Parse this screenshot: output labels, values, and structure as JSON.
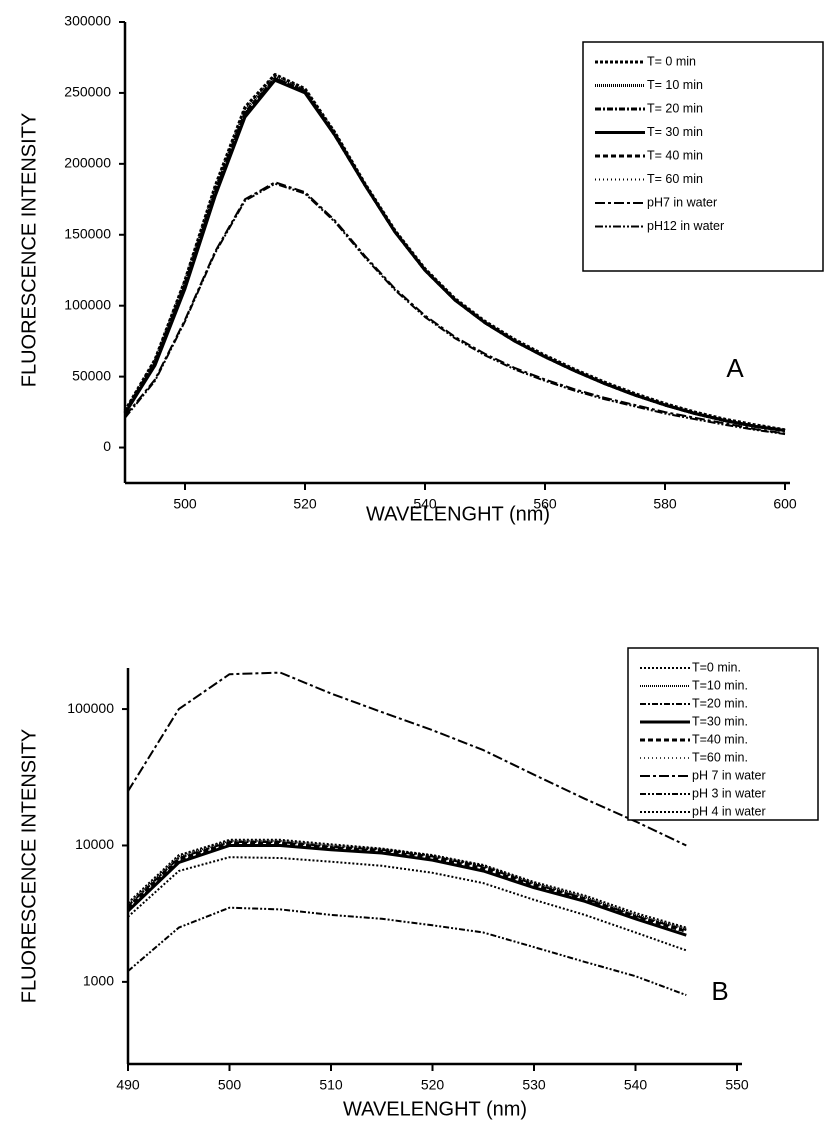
{
  "chart_data": [
    {
      "type": "line",
      "panel_label": "A",
      "x_label": "WAVELENGHT (nm)",
      "y_label": "FLUORESCENCE INTENSITY",
      "x": [
        490,
        495,
        500,
        505,
        510,
        515,
        520,
        525,
        530,
        535,
        540,
        545,
        550,
        555,
        560,
        565,
        570,
        575,
        580,
        585,
        590,
        595,
        600
      ],
      "xlim": [
        490,
        600
      ],
      "xticks": [
        500,
        520,
        540,
        560,
        580,
        600
      ],
      "ylim": [
        -25000,
        300000
      ],
      "yticks": [
        0,
        50000,
        100000,
        150000,
        200000,
        250000,
        300000
      ],
      "log_y": false,
      "series": [
        {
          "name": "T= 0 min",
          "color": "#000000",
          "values": [
            26000,
            62000,
            118000,
            184000,
            240000,
            263000,
            253000,
            222000,
            186000,
            153000,
            126000,
            105000,
            89000,
            76000,
            65000,
            55000,
            46000,
            38000,
            31000,
            25000,
            20000,
            16000,
            12500
          ]
        },
        {
          "name": "T= 10 min",
          "color": "#000000",
          "values": [
            25000,
            61000,
            117000,
            182000,
            238000,
            262000,
            252000,
            221000,
            185000,
            152000,
            125000,
            104000,
            88000,
            75000,
            64000,
            54000,
            45000,
            37000,
            30000,
            24000,
            19000,
            15000,
            12000
          ]
        },
        {
          "name": "T= 20 min",
          "color": "#000000",
          "values": [
            24000,
            59000,
            114000,
            179000,
            235000,
            260000,
            251000,
            220000,
            185000,
            152000,
            125000,
            104000,
            88000,
            75000,
            64000,
            54000,
            45000,
            37000,
            30000,
            24000,
            19000,
            15000,
            12000
          ]
        },
        {
          "name": "T= 30 min",
          "color": "#000000",
          "values": [
            24000,
            58000,
            112000,
            177000,
            233000,
            259000,
            250000,
            220000,
            185000,
            152000,
            125000,
            104000,
            88000,
            75000,
            64000,
            54000,
            45000,
            37000,
            30000,
            24000,
            19000,
            15000,
            12000
          ]
        },
        {
          "name": "T= 40 min",
          "color": "#000000",
          "values": [
            25000,
            60000,
            115000,
            180000,
            236000,
            260000,
            251000,
            221000,
            185000,
            152000,
            125000,
            104000,
            88000,
            75000,
            64000,
            54000,
            45000,
            37000,
            30000,
            24000,
            19000,
            15000,
            12000
          ]
        },
        {
          "name": "T= 60 min",
          "color": "#000000",
          "values": [
            25000,
            60000,
            116000,
            181000,
            237000,
            261000,
            251000,
            221000,
            185000,
            152000,
            125000,
            104000,
            88000,
            75000,
            64000,
            54000,
            45000,
            37000,
            30000,
            24000,
            19000,
            15000,
            12000
          ]
        },
        {
          "name": "pH7 in water",
          "color": "#000000",
          "values": [
            22000,
            48000,
            90000,
            138000,
            175000,
            187000,
            180000,
            160000,
            135000,
            112000,
            93000,
            78000,
            66000,
            56000,
            48000,
            41000,
            35000,
            30000,
            25000,
            21000,
            17000,
            13000,
            10000
          ]
        },
        {
          "name": "pH12 in water",
          "color": "#000000",
          "values": [
            21000,
            47000,
            89000,
            137000,
            174000,
            186000,
            179000,
            159000,
            134000,
            111000,
            92000,
            77000,
            65000,
            55000,
            47000,
            40000,
            34000,
            29000,
            24000,
            20000,
            16000,
            12500,
            9500
          ]
        }
      ]
    },
    {
      "type": "line",
      "panel_label": "B",
      "x_label": "WAVELENGHT (nm)",
      "y_label": "FLUORESCENCE INTENSITY",
      "x": [
        490,
        495,
        500,
        505,
        510,
        515,
        520,
        525,
        530,
        535,
        540,
        545
      ],
      "xlim": [
        490,
        550
      ],
      "xticks": [
        490,
        500,
        510,
        520,
        530,
        540,
        550
      ],
      "ylim": [
        250,
        200000
      ],
      "yticks": [
        1000,
        10000,
        100000
      ],
      "log_y": true,
      "series": [
        {
          "name": "T=0 min.",
          "color": "#000000",
          "values": [
            3800,
            8500,
            11000,
            11000,
            10200,
            9500,
            8500,
            7200,
            5400,
            4300,
            3200,
            2500
          ]
        },
        {
          "name": "T=10 min.",
          "color": "#000000",
          "values": [
            3700,
            8300,
            10800,
            10800,
            10000,
            9400,
            8400,
            7100,
            5300,
            4200,
            3100,
            2450
          ]
        },
        {
          "name": "T=20 min.",
          "color": "#000000",
          "values": [
            3600,
            8100,
            10600,
            10600,
            9800,
            9300,
            8300,
            7000,
            5200,
            4100,
            3050,
            2400
          ]
        },
        {
          "name": "T=30 min.",
          "color": "#000000",
          "values": [
            3300,
            7500,
            10000,
            10000,
            9300,
            8800,
            7800,
            6500,
            4900,
            3900,
            2900,
            2200
          ]
        },
        {
          "name": "T=40 min.",
          "color": "#000000",
          "values": [
            3500,
            7900,
            10400,
            10400,
            9600,
            9100,
            8100,
            6800,
            5100,
            4050,
            3000,
            2350
          ]
        },
        {
          "name": "T=60 min.",
          "color": "#000000",
          "values": [
            3400,
            7700,
            10200,
            10200,
            9500,
            9000,
            8000,
            6700,
            5000,
            4000,
            2950,
            2300
          ]
        },
        {
          "name": "pH 7 in water",
          "color": "#000000",
          "values": [
            25000,
            100000,
            180000,
            185000,
            130000,
            95000,
            70000,
            50000,
            33000,
            22000,
            15000,
            10000
          ]
        },
        {
          "name": "pH 3 in water",
          "color": "#000000",
          "values": [
            1200,
            2500,
            3500,
            3400,
            3100,
            2900,
            2600,
            2300,
            1800,
            1400,
            1100,
            800
          ]
        },
        {
          "name": "pH 4 in water",
          "color": "#000000",
          "values": [
            3000,
            6500,
            8200,
            8100,
            7600,
            7100,
            6300,
            5300,
            4000,
            3100,
            2300,
            1700
          ]
        }
      ]
    }
  ]
}
